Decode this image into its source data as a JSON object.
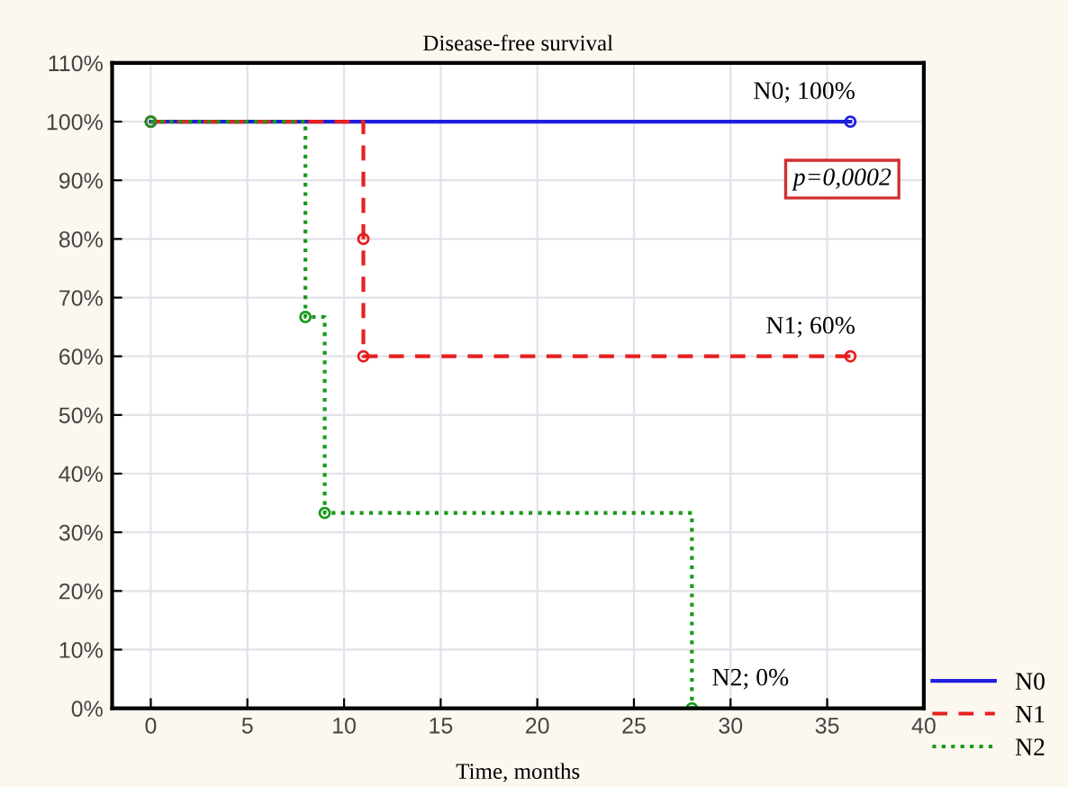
{
  "chart_data": {
    "type": "step",
    "title": "Disease-free survival",
    "xlabel": "Time, months",
    "series": [
      {
        "name": "N0",
        "color": "#1f1fe0",
        "line_style": "solid",
        "x": [
          0,
          36.2
        ],
        "values": [
          100,
          100
        ]
      },
      {
        "name": "N1",
        "color": "#e62020",
        "line_style": "dashed",
        "x": [
          0,
          11,
          11,
          36.2
        ],
        "values": [
          100,
          80,
          60,
          60
        ]
      },
      {
        "name": "N2",
        "color": "#1a9a1a",
        "line_style": "dotted",
        "x": [
          0,
          8,
          9,
          28
        ],
        "values": [
          100,
          66.7,
          33.3,
          0
        ]
      }
    ],
    "annotations": [
      "N0; 100%",
      "N1; 60%",
      "N2; 0%",
      "p=0,0002"
    ],
    "marker": "circle",
    "xlim": [
      -2,
      40
    ],
    "xticks": [
      0,
      5,
      10,
      15,
      20,
      25,
      30,
      35,
      40
    ],
    "ylim": [
      0,
      110
    ],
    "yticks": [
      {
        "value": 0,
        "label": "0%"
      },
      {
        "value": 10,
        "label": "10%"
      },
      {
        "value": 20,
        "label": "20%"
      },
      {
        "value": 30,
        "label": "30%"
      },
      {
        "value": 40,
        "label": "40%"
      },
      {
        "value": 50,
        "label": "50%"
      },
      {
        "value": 60,
        "label": "60%"
      },
      {
        "value": 70,
        "label": "70%"
      },
      {
        "value": 80,
        "label": "80%"
      },
      {
        "value": 90,
        "label": "90%"
      },
      {
        "value": 100,
        "label": "100%"
      },
      {
        "value": 110,
        "label": "110%"
      }
    ],
    "grid": true,
    "legend": "bottom right"
  }
}
